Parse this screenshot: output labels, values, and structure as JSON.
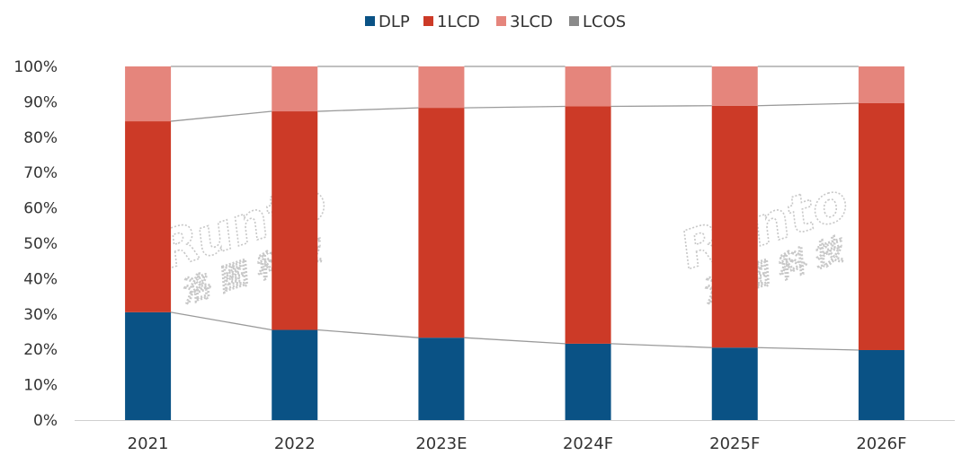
{
  "chart_data": {
    "type": "bar",
    "stacked": true,
    "percent": true,
    "categories": [
      "2021",
      "2022",
      "2023E",
      "2024F",
      "2025F",
      "2026F"
    ],
    "series": [
      {
        "name": "DLP",
        "color": "#0a5285",
        "values": [
          30.5,
          25.5,
          23.3,
          21.6,
          20.5,
          19.8
        ]
      },
      {
        "name": "1LCD",
        "color": "#cc3a27",
        "values": [
          54.0,
          61.8,
          65.0,
          67.1,
          68.4,
          69.8
        ]
      },
      {
        "name": "3LCD",
        "color": "#e5857c",
        "values": [
          15.5,
          12.7,
          11.7,
          11.3,
          11.1,
          10.4
        ]
      },
      {
        "name": "LCOS",
        "color": "#8a8a8a",
        "values": [
          0,
          0,
          0,
          0,
          0,
          0
        ]
      }
    ],
    "ylim": [
      0,
      100
    ],
    "yticks": [
      "0%",
      "10%",
      "20%",
      "30%",
      "40%",
      "50%",
      "60%",
      "70%",
      "80%",
      "90%",
      "100%"
    ],
    "legend_position": "top-center",
    "grid": false,
    "series_lines": true
  },
  "watermark": {
    "latin": "Runto",
    "cjk": "洛 图 科 技"
  }
}
